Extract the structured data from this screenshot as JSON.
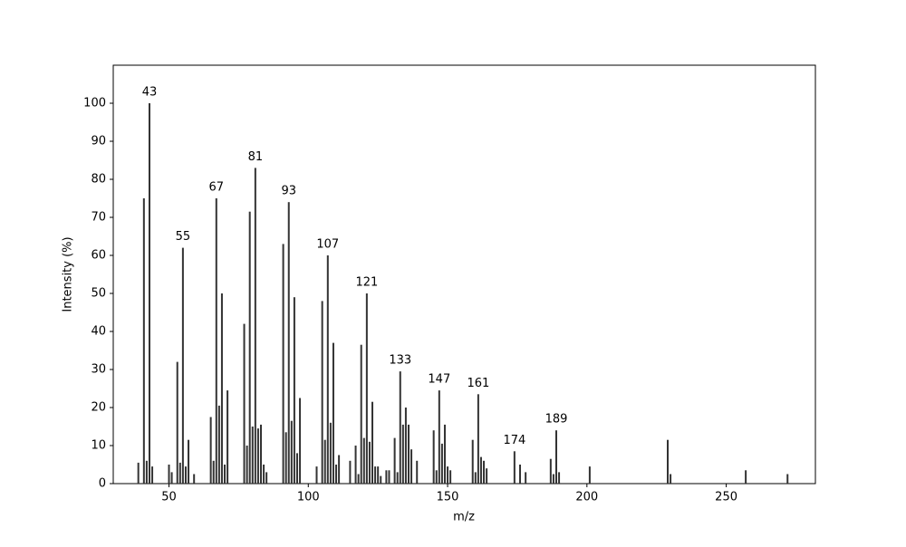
{
  "chart_data": {
    "type": "stem",
    "x_label": "m/z",
    "y_label": "Intensity (%)",
    "x": [
      39,
      41,
      42,
      43,
      44,
      50,
      51,
      53,
      54,
      55,
      56,
      57,
      59,
      65,
      66,
      67,
      68,
      69,
      70,
      71,
      77,
      78,
      79,
      80,
      81,
      82,
      83,
      84,
      85,
      91,
      92,
      93,
      94,
      95,
      96,
      97,
      103,
      105,
      106,
      107,
      108,
      109,
      110,
      111,
      115,
      117,
      118,
      119,
      120,
      121,
      122,
      123,
      124,
      125,
      126,
      128,
      129,
      131,
      132,
      133,
      134,
      135,
      136,
      137,
      139,
      145,
      146,
      147,
      148,
      149,
      150,
      151,
      159,
      160,
      161,
      162,
      163,
      164,
      174,
      176,
      178,
      187,
      188,
      189,
      190,
      201,
      229,
      230,
      257,
      272
    ],
    "values": [
      5.5,
      75,
      6,
      100,
      4.5,
      5,
      3,
      32,
      5.5,
      62,
      4.5,
      11.5,
      2.5,
      17.5,
      6,
      75,
      20.5,
      50,
      5,
      24.5,
      42,
      10,
      71.5,
      15,
      83,
      14.5,
      15.5,
      5,
      3,
      63,
      13.5,
      74,
      16.5,
      49,
      8,
      22.5,
      4.5,
      48,
      11.5,
      60,
      16,
      37,
      5,
      7.5,
      6,
      10,
      2.5,
      36.5,
      12,
      50,
      11,
      21.5,
      4.5,
      4.5,
      2,
      3.5,
      3.5,
      12,
      3,
      29.5,
      15.5,
      20,
      15.5,
      9,
      6,
      14,
      3.5,
      24.5,
      10.5,
      15.5,
      4.5,
      3.5,
      11.5,
      3,
      23.5,
      7,
      6,
      4,
      8.5,
      5,
      3,
      6.5,
      2.5,
      14,
      3,
      4.5,
      11.5,
      2.5,
      3.5,
      2.5
    ],
    "annotations": [
      43,
      55,
      67,
      81,
      93,
      107,
      121,
      133,
      147,
      161,
      174,
      189
    ],
    "color": "#333333",
    "xlim": [
      30,
      282
    ],
    "xticks": [
      50,
      100,
      150,
      200,
      250
    ],
    "ylim": [
      0,
      110
    ],
    "yticks": [
      0,
      10,
      20,
      30,
      40,
      50,
      60,
      70,
      80,
      90,
      100
    ],
    "grid": false
  }
}
